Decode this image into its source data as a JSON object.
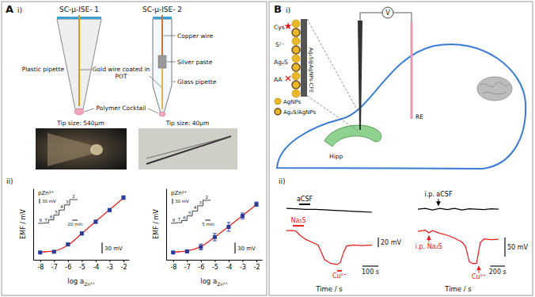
{
  "panel_a": {
    "letter": "A",
    "part_i_label": "i)",
    "electrode_1": {
      "title": "SC-μ-ISE- 1",
      "pipette": "Plastic pipette",
      "wire": "Gold wire coated in POT",
      "membrane": "Polymer Cocktail",
      "photo_caption": "Tip size: 540μm"
    },
    "electrode_2": {
      "title": "SC-μ-ISE- 2",
      "wire": "Copper wire",
      "contact": "Silver paste",
      "pipette": "Glass pipette",
      "photo_caption": "Tip size: 40μm"
    },
    "part_ii_label": "ii)"
  },
  "chart_data": [
    {
      "type": "scatter",
      "x": [
        -8,
        -7,
        -6,
        -5,
        -4,
        -3,
        -2
      ],
      "xlim": [
        -8.5,
        -1.6
      ],
      "xticks": [
        -8,
        -7,
        -6,
        -5,
        -4,
        -3,
        -2
      ],
      "ylim": [
        -20,
        175
      ],
      "tick_labels": "x",
      "x_label": "log a",
      "x_label_sub": "Zn²⁺",
      "y_label": "EMF / mV",
      "series": [
        {
          "type": "line",
          "color": "#e8251f",
          "line_style": "solid",
          "values": [
            1,
            4,
            20,
            52,
            85,
            117,
            149
          ]
        },
        {
          "type": "scatter",
          "color": "#2a3a9c",
          "marker": "square",
          "values": [
            0,
            2,
            22,
            52,
            84,
            116,
            150
          ],
          "errors": [
            2,
            2,
            3,
            4,
            4,
            4,
            5
          ]
        }
      ],
      "scale_bar": {
        "value": 30,
        "label": "30 mV"
      },
      "inset": {
        "y_label": "pZn²⁺",
        "p_values": [
          8,
          7,
          6,
          5,
          4,
          3,
          2
        ],
        "levels": [
          0,
          2,
          22,
          52,
          84,
          116,
          150
        ],
        "t": [
          0,
          20,
          40,
          60,
          80,
          100,
          120
        ],
        "tlim": [
          0,
          150
        ],
        "ylim": [
          -10,
          160
        ],
        "scale_bar_v": {
          "value": 30,
          "label": "30 mV"
        },
        "scale_bar_t": {
          "value": 20,
          "label": "20 min"
        }
      }
    },
    {
      "type": "scatter",
      "x": [
        -8,
        -7,
        -6,
        -5,
        -4,
        -3,
        -2
      ],
      "xlim": [
        -8.5,
        -1.6
      ],
      "xticks": [
        -8,
        -7,
        -6,
        -5,
        -4,
        -3,
        -2
      ],
      "ylim": [
        -20,
        175
      ],
      "tick_labels": "x",
      "x_label": "log a",
      "x_label_sub": "Zn²⁺",
      "y_label": "EMF / mV",
      "series": [
        {
          "type": "line",
          "color": "#e8251f",
          "line_style": "solid",
          "values": [
            1,
            4,
            16,
            42,
            71,
            101,
            131
          ]
        },
        {
          "type": "scatter",
          "color": "#2a3a9c",
          "marker": "square",
          "values": [
            0,
            3,
            15,
            42,
            70,
            100,
            132
          ],
          "errors": [
            2,
            4,
            8,
            10,
            12,
            8,
            6
          ]
        }
      ],
      "scale_bar": {
        "value": 30,
        "label": "30 mV"
      },
      "inset": {
        "y_label": "pZn²⁺",
        "p_values": [
          8,
          7,
          6,
          5,
          4,
          3,
          2
        ],
        "levels": [
          0,
          3,
          15,
          42,
          70,
          100,
          132
        ],
        "t": [
          0,
          5,
          10,
          15,
          20,
          25,
          30
        ],
        "tlim": [
          0,
          37
        ],
        "ylim": [
          -10,
          145
        ],
        "scale_bar_v": {
          "value": 30,
          "label": "30 mV"
        },
        "scale_bar_t": {
          "value": 5,
          "label": "5 min"
        }
      }
    }
  ],
  "panel_b": {
    "letter": "B",
    "part_i_label": "i)",
    "scheme": {
      "analyte": "Cys",
      "sulfide": "S²⁻",
      "product": "Ag₂S",
      "interferent": "AA",
      "electrode": "Ag₂S@AgNPs-CFE",
      "meter": "V",
      "reference": "RE",
      "region": "Hipp",
      "key_items": [
        "AgNPs",
        "Ag₂S/AgNPs"
      ]
    },
    "part_ii_label": "ii)",
    "recordings": [
      {
        "x_label": "Time / s",
        "tlim": [
          0,
          540
        ],
        "vlim": [
          -80,
          10
        ],
        "scale_bar_v": {
          "value": 20,
          "label": "20 mV"
        },
        "scale_bar_t": {
          "value": 100,
          "label": "100 s"
        },
        "traces": [
          {
            "color": "#000000",
            "t": [
              0,
              60,
              120,
              180,
              240,
              300,
              360,
              420,
              480,
              540
            ],
            "v": [
              0,
              -1,
              -2,
              -2,
              -3,
              -4,
              -5,
              -6,
              -7,
              -8
            ],
            "events": [
              {
                "label": "aCSF",
                "t": [
                  80,
                  150
                ],
                "marker": "bar"
              }
            ]
          },
          {
            "color": "#e41a1c",
            "t": [
              0,
              40,
              60,
              80,
              120,
              160,
              200,
              220,
              240,
              280,
              320,
              340,
              360,
              380,
              420,
              480,
              540
            ],
            "v": [
              0,
              0,
              -1,
              -8,
              -18,
              -24,
              -30,
              -45,
              -60,
              -68,
              -70,
              -66,
              -45,
              -32,
              -30,
              -31,
              -30
            ],
            "events": [
              {
                "label": "Na₂S",
                "t": [
                  40,
                  110
                ],
                "marker": "bar"
              },
              {
                "label": "Cu²⁺",
                "t": [
                  320,
                  350
                ],
                "marker": "bar"
              }
            ]
          }
        ]
      },
      {
        "x_label": "Time / s",
        "tlim": [
          0,
          1100
        ],
        "vlim": [
          -100,
          15
        ],
        "scale_bar_v": {
          "value": 50,
          "label": "50 mV"
        },
        "scale_bar_t": {
          "value": 200,
          "label": "200 s"
        },
        "traces": [
          {
            "color": "#000000",
            "t": [
              0,
              100,
              200,
              300,
              400,
              500,
              600,
              700,
              800,
              900,
              1000,
              1100
            ],
            "v": [
              0,
              2,
              -2,
              2,
              -1,
              2,
              -2,
              1,
              0,
              -1,
              1,
              0
            ],
            "events": [
              {
                "label": "i.p. aCSF",
                "t": 280,
                "marker": "arrow"
              }
            ]
          },
          {
            "color": "#e41a1c",
            "t": [
              0,
              100,
              150,
              200,
              300,
              400,
              500,
              600,
              650,
              700,
              750,
              800,
              850,
              900,
              1000,
              1100
            ],
            "v": [
              0,
              3,
              -4,
              2,
              -5,
              -10,
              -18,
              -28,
              -40,
              -80,
              -85,
              -84,
              -30,
              -20,
              -22,
              -21
            ],
            "events": [
              {
                "label": "i.p. Na₂S",
                "t": 150,
                "marker": "arrow"
              },
              {
                "label": "Cu²⁺",
                "t": 830,
                "marker": "arrow"
              }
            ]
          }
        ]
      }
    ]
  }
}
